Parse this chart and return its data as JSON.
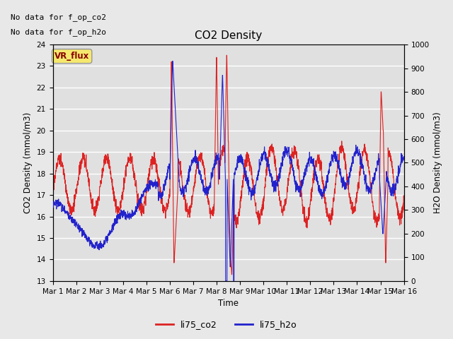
{
  "title": "CO2 Density",
  "xlabel": "Time",
  "ylabel_left": "CO2 Density (mmol/m3)",
  "ylabel_right": "H2O Density (mmol/m3)",
  "top_text_line1": "No data for f_op_co2",
  "top_text_line2": "No data for f_op_h2o",
  "legend_box_label": "VR_flux",
  "legend_box_color": "#f5e86e",
  "legend_box_text_color": "#880000",
  "ylim_left": [
    13.0,
    24.0
  ],
  "ylim_right": [
    0,
    1000
  ],
  "yticks_left": [
    13.0,
    14.0,
    15.0,
    16.0,
    17.0,
    18.0,
    19.0,
    20.0,
    21.0,
    22.0,
    23.0,
    24.0
  ],
  "yticks_right": [
    0,
    100,
    200,
    300,
    400,
    500,
    600,
    700,
    800,
    900,
    1000
  ],
  "xtick_labels": [
    "Mar 1",
    "Mar 2",
    "Mar 3",
    "Mar 4",
    "Mar 5",
    "Mar 6",
    "Mar 7",
    "Mar 8",
    "Mar 9",
    "Mar 10",
    "Mar 11",
    "Mar 12",
    "Mar 13",
    "Mar 14",
    "Mar 15",
    "Mar 16"
  ],
  "color_co2": "#dd2222",
  "color_h2o": "#2222cc",
  "plot_bg_color": "#e0e0e0",
  "fig_bg_color": "#e8e8e8",
  "grid_color": "#ffffff",
  "legend_co2": "li75_co2",
  "legend_h2o": "li75_h2o",
  "linewidth": 0.8
}
